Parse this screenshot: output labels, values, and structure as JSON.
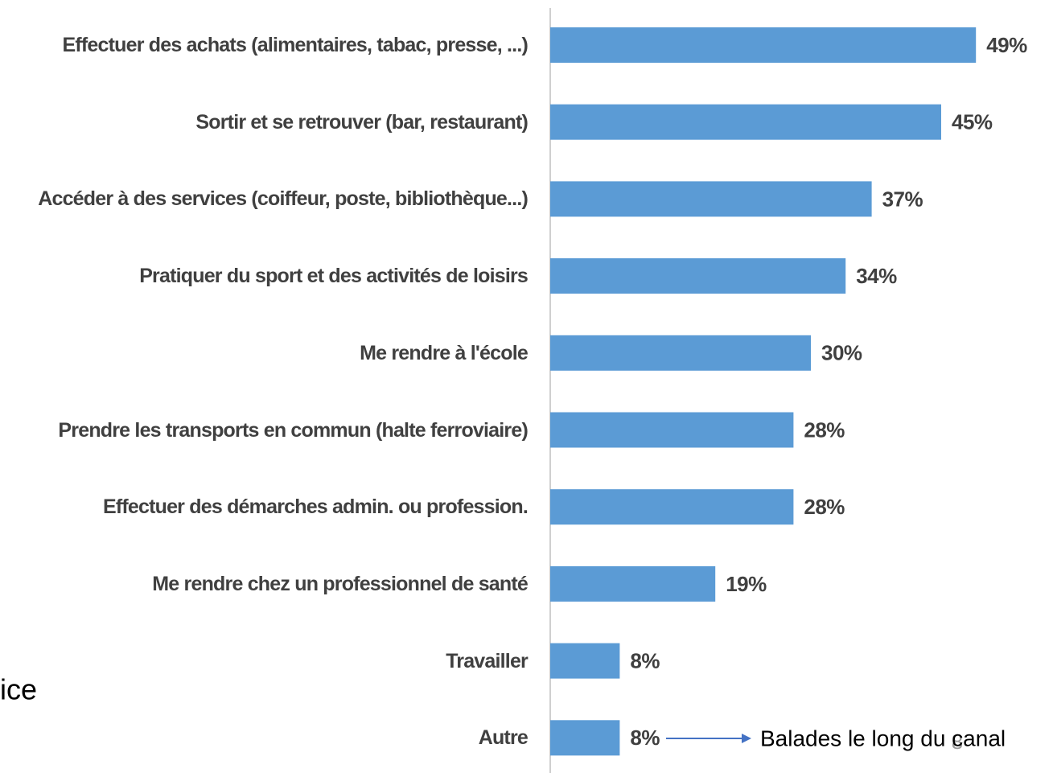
{
  "chart_data": {
    "type": "bar",
    "orientation": "horizontal",
    "categories": [
      "Effectuer des achats (alimentaires, tabac, presse, ...)",
      "Sortir et se retrouver (bar, restaurant)",
      "Accéder à des services (coiffeur, poste, bibliothèque...)",
      "Pratiquer du sport et des activités de loisirs",
      "Me rendre à l'école",
      "Prendre les transports en commun (halte ferroviaire)",
      "Effectuer des démarches admin. ou profession.",
      "Me rendre chez un professionnel de santé",
      "Travailler",
      "Autre"
    ],
    "values": [
      49,
      45,
      37,
      34,
      30,
      28,
      28,
      19,
      8,
      8
    ],
    "value_labels": [
      "49%",
      "45%",
      "37%",
      "34%",
      "30%",
      "28%",
      "28%",
      "19%",
      "8%",
      "8%"
    ],
    "color": "#5b9bd5",
    "xlim": [
      0,
      50
    ],
    "annotation": "Balades le long du canal",
    "side_text": "ice",
    "page_number": "8"
  }
}
